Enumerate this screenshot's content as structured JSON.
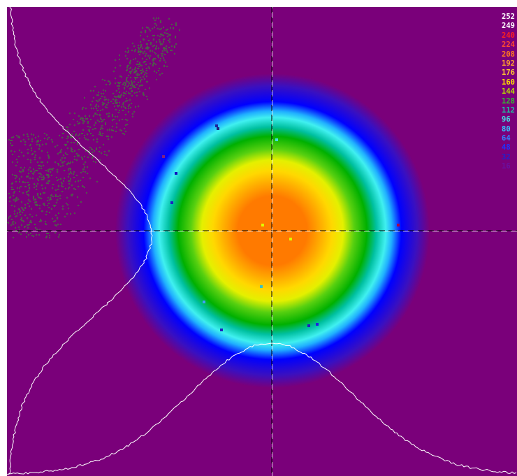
{
  "colors": {
    "background": "#7a007a",
    "crosshair": "#000000",
    "profile_line": "#ffffff",
    "noise": "#4f5a4a"
  },
  "colorbar": {
    "items": [
      {
        "label": "252",
        "color": "#ffffff"
      },
      {
        "label": "249",
        "color": "#ffffff"
      },
      {
        "label": "240",
        "color": "#ff2020"
      },
      {
        "label": "224",
        "color": "#ff4a30"
      },
      {
        "label": "208",
        "color": "#ff7a20"
      },
      {
        "label": "192",
        "color": "#ffa030"
      },
      {
        "label": "176",
        "color": "#ffc830"
      },
      {
        "label": "160",
        "color": "#ffe000"
      },
      {
        "label": "144",
        "color": "#b8e000"
      },
      {
        "label": "128",
        "color": "#30c030"
      },
      {
        "label": "112",
        "color": "#20c0a0"
      },
      {
        "label": "96",
        "color": "#40e0e0"
      },
      {
        "label": "80",
        "color": "#30c8ff"
      },
      {
        "label": "64",
        "color": "#3080ff"
      },
      {
        "label": "48",
        "color": "#2030ff"
      },
      {
        "label": "32",
        "color": "#2020d0"
      },
      {
        "label": "16",
        "color": "#6a10a0"
      }
    ]
  }
}
